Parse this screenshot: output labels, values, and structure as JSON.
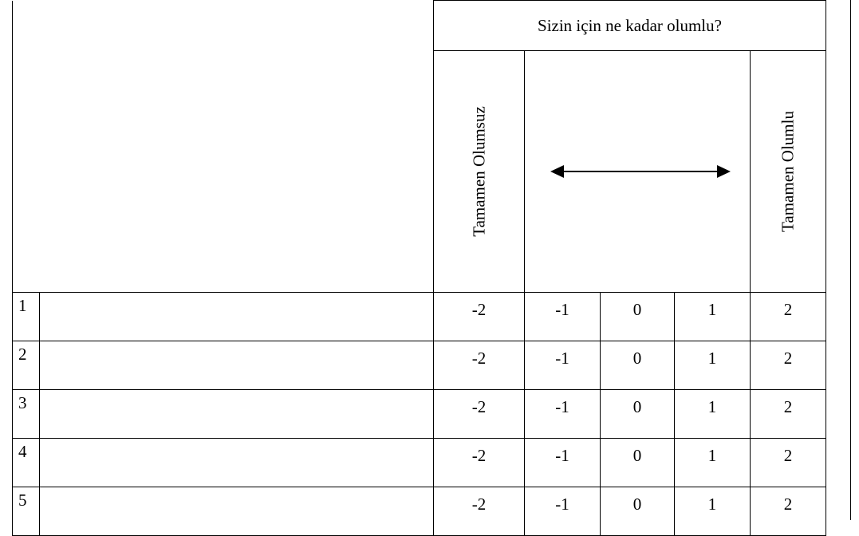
{
  "header": {
    "question": "Sizin için ne kadar olumlu?",
    "left_label": "Tamamen Olumsuz",
    "right_label": "Tamamen Olumlu",
    "arrow_icon": "double-headed-arrow-icon"
  },
  "rows": [
    {
      "number": "1",
      "values": [
        "-2",
        "-1",
        "0",
        "1",
        "2"
      ]
    },
    {
      "number": "2",
      "values": [
        "-2",
        "-1",
        "0",
        "1",
        "2"
      ]
    },
    {
      "number": "3",
      "values": [
        "-2",
        "-1",
        "0",
        "1",
        "2"
      ]
    },
    {
      "number": "4",
      "values": [
        "-2",
        "-1",
        "0",
        "1",
        "2"
      ]
    },
    {
      "number": "5",
      "values": [
        "-2",
        "-1",
        "0",
        "1",
        "2"
      ]
    }
  ]
}
